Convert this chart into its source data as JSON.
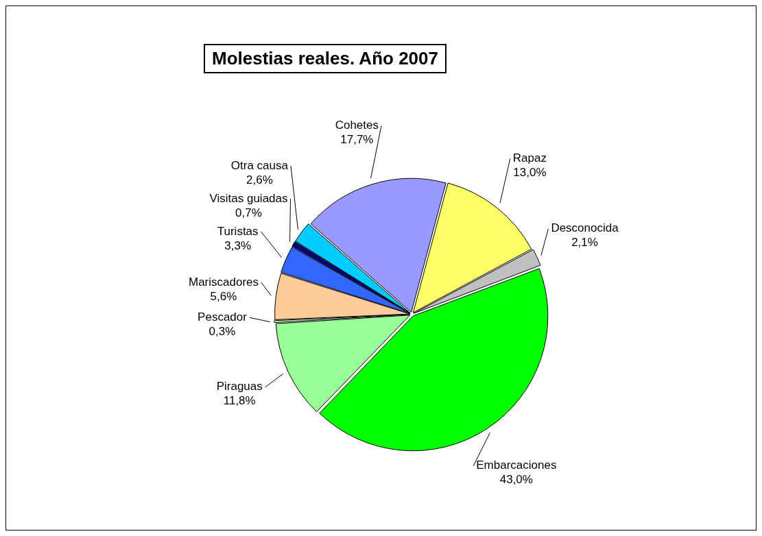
{
  "chart_data": {
    "type": "pie",
    "title": "Molestias reales. Año 2007",
    "categories": [
      "Rapaz",
      "Desconocida",
      "Embarcaciones",
      "Piraguas",
      "Pescador",
      "Mariscadores",
      "Turistas",
      "Visitas guiadas",
      "Otra causa",
      "Cohetes"
    ],
    "values": [
      13.0,
      2.1,
      43.0,
      11.8,
      0.3,
      5.6,
      3.3,
      0.7,
      2.6,
      17.7
    ],
    "value_labels": [
      "13,0%",
      "2,1%",
      "43,0%",
      "11,8%",
      "0,3%",
      "5,6%",
      "3,3%",
      "0,7%",
      "2,6%",
      "17,7%"
    ],
    "colors": [
      "#ffff66",
      "#c0c0c0",
      "#00ff00",
      "#99ff99",
      "#ccffcc",
      "#ffcc99",
      "#3366ff",
      "#000080",
      "#00ccff",
      "#9999ff"
    ],
    "legend": false
  }
}
